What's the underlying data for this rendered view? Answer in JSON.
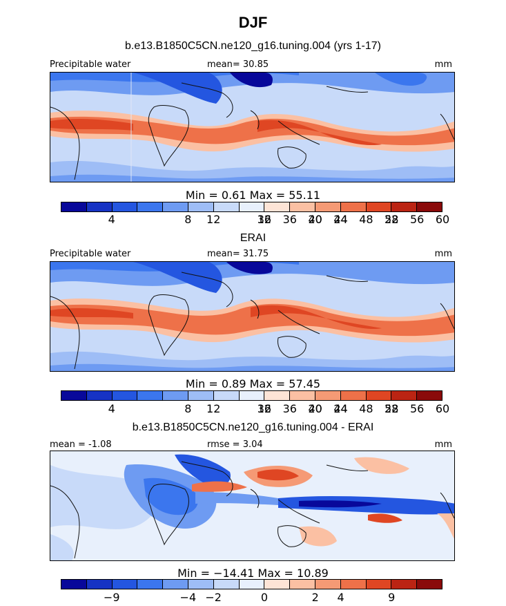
{
  "title": "DJF",
  "panels": [
    {
      "title": "b.e13.B1850C5CN.ne120_g16.tuning.004 (yrs 1-17)",
      "left_label": "Precipitable water",
      "center_label": "mean=  30.85",
      "units": "mm",
      "minmax": "Min =   0.61 Max =  55.11",
      "colorbar": {
        "colors": [
          "#08089a",
          "#1633c4",
          "#2456e0",
          "#3b76ee",
          "#6e9bf2",
          "#9ebdf6",
          "#c8daf9",
          "#e8f0fc",
          "#fde4d6",
          "#fbc0a3",
          "#f59a75",
          "#ee7149",
          "#df4623",
          "#bb2413",
          "#8a0a0a"
        ],
        "labels": [
          "4",
          "8",
          "12",
          "16",
          "20",
          "24",
          "28",
          "32",
          "36",
          "40",
          "44",
          "48",
          "52",
          "56",
          "60"
        ]
      }
    },
    {
      "title": "ERAI",
      "left_label": "Precipitable water",
      "center_label": "mean=  31.75",
      "units": "mm",
      "minmax": "Min =   0.89 Max =  57.45",
      "colorbar": {
        "colors": [
          "#08089a",
          "#1633c4",
          "#2456e0",
          "#3b76ee",
          "#6e9bf2",
          "#9ebdf6",
          "#c8daf9",
          "#e8f0fc",
          "#fde4d6",
          "#fbc0a3",
          "#f59a75",
          "#ee7149",
          "#df4623",
          "#bb2413",
          "#8a0a0a"
        ],
        "labels": [
          "4",
          "8",
          "12",
          "16",
          "20",
          "24",
          "28",
          "32",
          "36",
          "40",
          "44",
          "48",
          "52",
          "56",
          "60"
        ]
      }
    },
    {
      "title": "b.e13.B1850C5CN.ne120_g16.tuning.004 - ERAI",
      "left_label": "mean =  -1.08",
      "center_label": "rmse =   3.04",
      "units": "mm",
      "minmax": "Min = −14.41 Max =  10.89",
      "colorbar": {
        "colors": [
          "#08089a",
          "#1633c4",
          "#2456e0",
          "#3b76ee",
          "#6e9bf2",
          "#9ebdf6",
          "#c8daf9",
          "#e8f0fc",
          "#fde4d6",
          "#fbc0a3",
          "#f59a75",
          "#ee7149",
          "#df4623",
          "#bb2413",
          "#8a0a0a"
        ],
        "labels": [
          "−9",
          "−4",
          "−2",
          "0",
          "2",
          "4",
          "9"
        ]
      }
    }
  ]
}
